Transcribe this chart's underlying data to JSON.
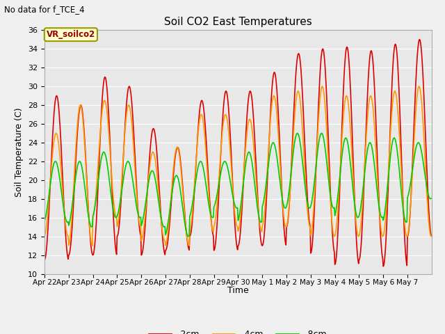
{
  "title": "Soil CO2 East Temperatures",
  "no_data_label": "No data for f_TCE_4",
  "legend_box_label": "VR_soilco2",
  "xlabel": "Time",
  "ylabel": "Soil Temperature (C)",
  "ylim": [
    10,
    36
  ],
  "yticks": [
    10,
    12,
    14,
    16,
    18,
    20,
    22,
    24,
    26,
    28,
    30,
    32,
    34,
    36
  ],
  "date_labels": [
    "Apr 22",
    "Apr 23",
    "Apr 24",
    "Apr 25",
    "Apr 26",
    "Apr 27",
    "Apr 28",
    "Apr 29",
    "Apr 30",
    "May 1",
    "May 2",
    "May 3",
    "May 4",
    "May 5",
    "May 6",
    "May 7"
  ],
  "colors": {
    "-2cm": "#dd0000",
    "-4cm": "#ff9900",
    "-8cm": "#00cc00"
  },
  "line_width": 1.2,
  "fig_bg_color": "#f0f0f0",
  "plot_bg_color": "#e8e8e8",
  "max_2cm": [
    29,
    28,
    31,
    30,
    25.5,
    23.5,
    28.5,
    29.5,
    29.5,
    31.5,
    33.5,
    34,
    34.2,
    33.8,
    34.5,
    35
  ],
  "min_2cm": [
    11.5,
    12,
    12,
    14,
    12,
    12.5,
    14,
    12.5,
    13,
    13,
    15,
    12.2,
    11,
    11.5,
    10.8,
    14
  ],
  "max_4cm": [
    25,
    28,
    28.5,
    28,
    23,
    23.5,
    27,
    27,
    26.5,
    29,
    29.5,
    30,
    29,
    29,
    29.5,
    30
  ],
  "min_4cm": [
    14,
    13,
    16,
    15,
    13.5,
    13,
    14.5,
    15,
    14.5,
    15,
    15,
    14,
    14,
    14,
    14,
    14
  ],
  "max_8cm": [
    22,
    22,
    23,
    22,
    21,
    20.5,
    22,
    22,
    23,
    24,
    25,
    25,
    24.5,
    24,
    24.5,
    24
  ],
  "min_8cm": [
    15.5,
    15,
    16,
    16,
    15,
    14,
    16,
    17,
    15.5,
    17,
    17,
    17,
    16,
    16,
    15.5,
    18
  ]
}
